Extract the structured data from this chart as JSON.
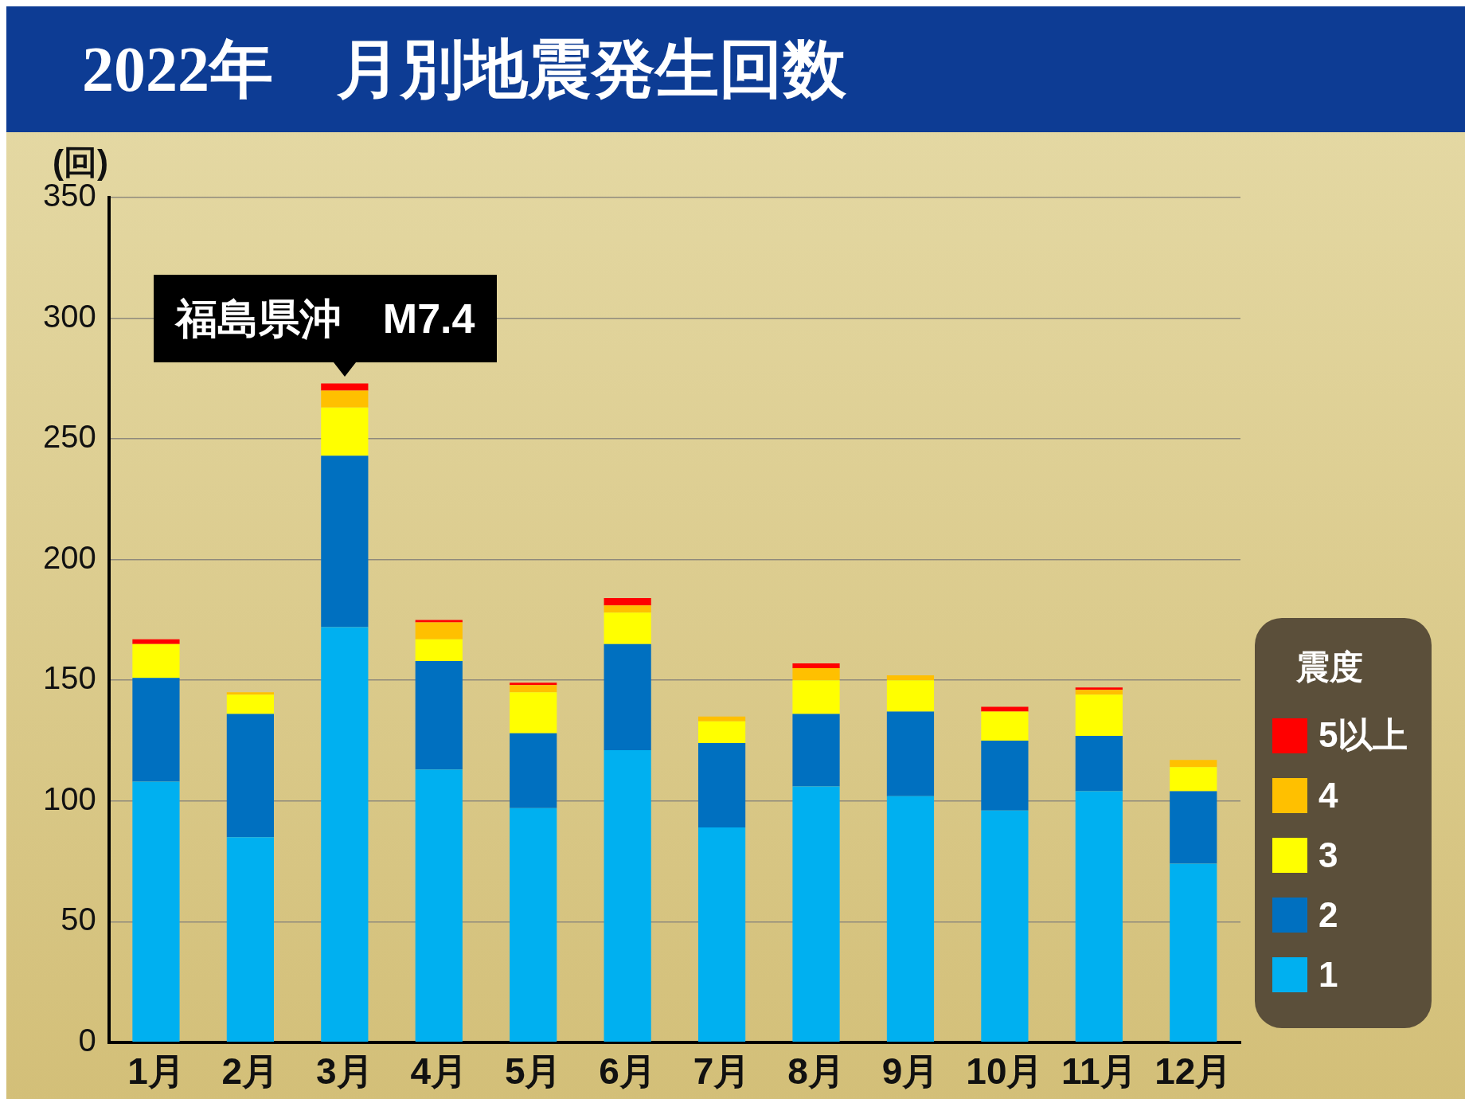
{
  "chart_data": {
    "type": "bar",
    "title": "2022年　月別地震発生回数",
    "ylabel": "(回)",
    "legend_title": "震度",
    "categories": [
      "1月",
      "2月",
      "3月",
      "4月",
      "5月",
      "6月",
      "7月",
      "8月",
      "9月",
      "10月",
      "11月",
      "12月"
    ],
    "stacked": true,
    "ylim": [
      0,
      350
    ],
    "yticks": [
      0,
      50,
      100,
      150,
      200,
      250,
      300,
      350
    ],
    "grid": "y",
    "legend": "right",
    "annotations": [
      {
        "text": "福島県沖　M7.4",
        "x": "3月",
        "y": 273
      }
    ],
    "series": [
      {
        "name": "1",
        "color": "#00b0f0",
        "values": [
          108,
          85,
          172,
          113,
          97,
          121,
          89,
          106,
          102,
          96,
          104,
          74
        ]
      },
      {
        "name": "2",
        "color": "#0070c0",
        "values": [
          43,
          51,
          71,
          45,
          31,
          44,
          35,
          30,
          35,
          29,
          23,
          30
        ]
      },
      {
        "name": "3",
        "color": "#ffff00",
        "values": [
          14,
          8,
          20,
          9,
          17,
          13,
          9,
          14,
          13,
          12,
          17,
          10
        ]
      },
      {
        "name": "4",
        "color": "#ffc000",
        "values": [
          0,
          1,
          7,
          7,
          3,
          3,
          2,
          5,
          2,
          0,
          2,
          3
        ]
      },
      {
        "name": "5以上",
        "color": "#ff0000",
        "values": [
          2,
          0,
          3,
          1,
          1,
          3,
          0,
          2,
          0,
          2,
          1,
          0
        ]
      }
    ]
  }
}
